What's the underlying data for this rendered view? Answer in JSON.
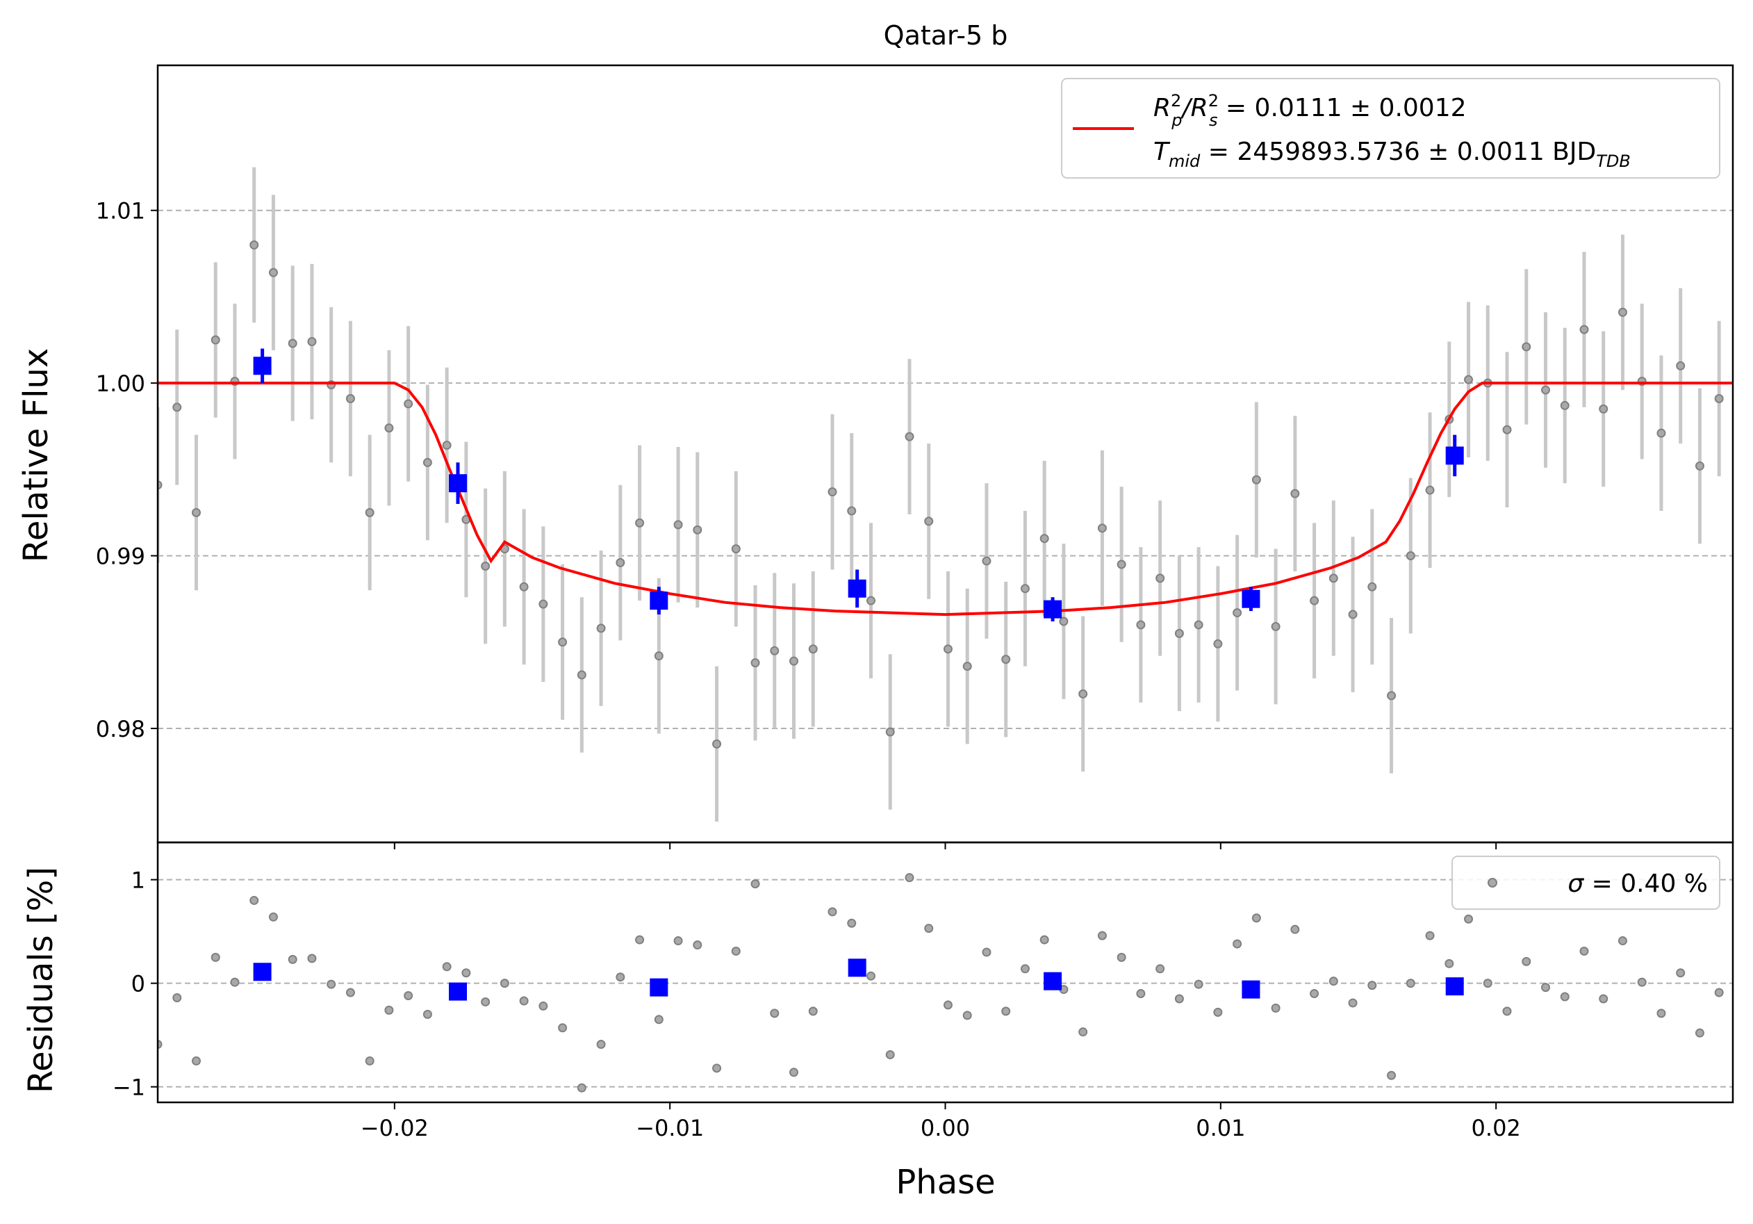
{
  "chart_data": {
    "type": "scatter",
    "title": "Qatar-5 b",
    "xlabel": "Phase",
    "top_panel": {
      "ylabel": "Relative Flux",
      "xlim": [
        -0.0286,
        0.0286
      ],
      "ylim": [
        0.9734,
        1.0184
      ],
      "yticks": [
        0.98,
        0.99,
        1.0,
        1.01
      ],
      "ytick_labels": [
        "0.98",
        "0.99",
        "1.00",
        "1.01"
      ],
      "grid": true,
      "legend": {
        "location": "upper right",
        "line1_main": "R",
        "line1_sup_a": "2",
        "line1_sub_a": "p",
        "line1_mid": "/R",
        "line1_sup_b": "2",
        "line1_sub_b": "s",
        "line1_value": " = 0.0111 ± 0.0012",
        "line2_main": "T",
        "line2_sub": "mid",
        "line2_value": " = 2459893.5736 ± 0.0011 BJD",
        "line2_sub2": "TDB",
        "line_color": "#ff0000"
      },
      "model": {
        "name": "transit model",
        "color": "#ff0000",
        "x": [
          -0.0286,
          -0.02,
          -0.0195,
          -0.019,
          -0.0185,
          -0.018,
          -0.0175,
          -0.017,
          -0.0165,
          -0.016,
          -0.015,
          -0.014,
          -0.012,
          -0.01,
          -0.008,
          -0.006,
          -0.004,
          -0.002,
          0.0,
          0.002,
          0.004,
          0.006,
          0.008,
          0.01,
          0.012,
          0.014,
          0.015,
          0.016,
          0.0165,
          0.017,
          0.0175,
          0.018,
          0.0185,
          0.019,
          0.0195,
          0.02,
          0.0286
        ],
        "y": [
          1.0,
          1.0,
          0.9996,
          0.9986,
          0.997,
          0.995,
          0.9931,
          0.9912,
          0.9897,
          0.9908,
          0.9899,
          0.9893,
          0.9884,
          0.9878,
          0.9873,
          0.987,
          0.9868,
          0.9867,
          0.9866,
          0.9867,
          0.9868,
          0.987,
          0.9873,
          0.9878,
          0.9884,
          0.9893,
          0.9899,
          0.9908,
          0.992,
          0.9936,
          0.9954,
          0.9971,
          0.9985,
          0.9995,
          1.0,
          1.0,
          1.0
        ]
      },
      "binned": {
        "name": "binned",
        "color": "#0000ff",
        "x": [
          -0.0248,
          -0.0177,
          -0.0104,
          -0.0032,
          0.0039,
          0.0111,
          0.0185
        ],
        "y": [
          1.001,
          0.9942,
          0.9874,
          0.9881,
          0.9869,
          0.9875,
          0.9958
        ],
        "yerr": [
          0.001,
          0.0012,
          0.0008,
          0.0011,
          0.0007,
          0.0007,
          0.0012
        ]
      },
      "raw": {
        "name": "unbinned",
        "color": "#808080",
        "yerr": 0.0045,
        "x": [
          -0.0286,
          -0.0279,
          -0.0272,
          -0.0265,
          -0.0258,
          -0.0251,
          -0.0244,
          -0.0237,
          -0.023,
          -0.0223,
          -0.0216,
          -0.0209,
          -0.0202,
          -0.0195,
          -0.0188,
          -0.0181,
          -0.0174,
          -0.0167,
          -0.016,
          -0.0153,
          -0.0146,
          -0.0139,
          -0.0132,
          -0.0125,
          -0.0118,
          -0.0111,
          -0.0104,
          -0.0097,
          -0.009,
          -0.0083,
          -0.0076,
          -0.0069,
          -0.0062,
          -0.0055,
          -0.0048,
          -0.0041,
          -0.0034,
          -0.0027,
          -0.002,
          -0.0013,
          -0.0006,
          0.0001,
          0.0008,
          0.0015,
          0.0022,
          0.0029,
          0.0036,
          0.0043,
          0.005,
          0.0057,
          0.0064,
          0.0071,
          0.0078,
          0.0085,
          0.0092,
          0.0099,
          0.0106,
          0.0113,
          0.012,
          0.0127,
          0.0134,
          0.0141,
          0.0148,
          0.0155,
          0.0162,
          0.0169,
          0.0176,
          0.0183,
          0.019,
          0.0197,
          0.0204,
          0.0211,
          0.0218,
          0.0225,
          0.0232,
          0.0239,
          0.0246,
          0.0253,
          0.026,
          0.0267,
          0.0274,
          0.0281
        ],
        "y": [
          0.9941,
          0.9986,
          0.9925,
          1.0025,
          1.0001,
          1.008,
          1.0064,
          1.0023,
          1.0024,
          0.9999,
          0.9991,
          0.9925,
          0.9974,
          0.9988,
          0.9954,
          0.9964,
          0.9921,
          0.9894,
          0.9904,
          0.9882,
          0.9872,
          0.985,
          0.9831,
          0.9858,
          0.9896,
          0.9919,
          0.9842,
          0.9918,
          0.9915,
          0.9791,
          0.9904,
          0.9838,
          0.9845,
          0.9839,
          0.9846,
          0.9937,
          0.9926,
          0.9874,
          0.9798,
          0.9969,
          0.992,
          0.9846,
          0.9836,
          0.9897,
          0.984,
          0.9881,
          0.991,
          0.9862,
          0.982,
          0.9916,
          0.9895,
          0.986,
          0.9887,
          0.9855,
          0.986,
          0.9849,
          0.9867,
          0.9944,
          0.9859,
          0.9936,
          0.9874,
          0.9887,
          0.9866,
          0.9882,
          0.9819,
          0.99,
          0.9938,
          0.9979,
          1.0002,
          1.0,
          0.9973,
          1.0021,
          0.9996,
          0.9987,
          1.0031,
          0.9985,
          1.0041,
          1.0001,
          0.9971,
          1.001,
          0.9952,
          0.9991
        ]
      }
    },
    "bottom_panel": {
      "ylabel": "Residuals [%]",
      "ylim": [
        -1.15,
        1.36
      ],
      "yticks": [
        -1,
        0,
        1
      ],
      "ytick_labels": [
        "−1",
        "0",
        "1"
      ],
      "grid": true,
      "legend": {
        "location": "upper right",
        "prefix": "σ",
        "text": " = 0.40 %"
      },
      "binned": {
        "name": "binned residuals",
        "x": [
          -0.0248,
          -0.0177,
          -0.0104,
          -0.0032,
          0.0039,
          0.0111,
          0.0185
        ],
        "y": [
          0.11,
          -0.08,
          -0.04,
          0.15,
          0.02,
          -0.06,
          -0.03
        ]
      },
      "raw": {
        "name": "residuals",
        "x": [
          -0.0286,
          -0.0279,
          -0.0272,
          -0.0265,
          -0.0258,
          -0.0251,
          -0.0244,
          -0.0237,
          -0.023,
          -0.0223,
          -0.0216,
          -0.0209,
          -0.0202,
          -0.0195,
          -0.0188,
          -0.0181,
          -0.0174,
          -0.0167,
          -0.016,
          -0.0153,
          -0.0146,
          -0.0139,
          -0.0132,
          -0.0125,
          -0.0118,
          -0.0111,
          -0.0104,
          -0.0097,
          -0.009,
          -0.0083,
          -0.0076,
          -0.0069,
          -0.0062,
          -0.0055,
          -0.0048,
          -0.0041,
          -0.0034,
          -0.0027,
          -0.002,
          -0.0013,
          -0.0006,
          0.0001,
          0.0008,
          0.0015,
          0.0022,
          0.0029,
          0.0036,
          0.0043,
          0.005,
          0.0057,
          0.0064,
          0.0071,
          0.0078,
          0.0085,
          0.0092,
          0.0099,
          0.0106,
          0.0113,
          0.012,
          0.0127,
          0.0134,
          0.0141,
          0.0148,
          0.0155,
          0.0162,
          0.0169,
          0.0176,
          0.0183,
          0.019,
          0.0197,
          0.0204,
          0.0211,
          0.0218,
          0.0225,
          0.0232,
          0.0239,
          0.0246,
          0.0253,
          0.026,
          0.0267,
          0.0274,
          0.0281
        ],
        "y": [
          -0.59,
          -0.14,
          -0.75,
          0.25,
          0.01,
          0.8,
          0.64,
          0.23,
          0.24,
          -0.01,
          -0.09,
          -0.75,
          -0.26,
          -0.12,
          -0.3,
          0.16,
          0.1,
          -0.18,
          0.0,
          -0.17,
          -0.22,
          -0.43,
          -1.01,
          -0.59,
          0.06,
          0.42,
          -0.35,
          0.41,
          0.37,
          -0.82,
          0.31,
          0.96,
          -0.29,
          -0.86,
          -0.27,
          0.69,
          0.58,
          0.07,
          -0.69,
          1.02,
          0.53,
          -0.21,
          -0.31,
          0.3,
          -0.27,
          0.14,
          0.42,
          -0.06,
          -0.47,
          0.46,
          0.25,
          -0.1,
          0.14,
          -0.15,
          -0.01,
          -0.28,
          0.38,
          0.63,
          -0.24,
          0.52,
          -0.1,
          0.02,
          -0.19,
          -0.02,
          -0.89,
          0.0,
          0.46,
          0.19,
          0.62,
          0.0,
          -0.27,
          0.21,
          -0.04,
          -0.13,
          0.31,
          -0.15,
          0.41,
          0.01,
          -0.29,
          0.1,
          -0.48,
          -0.09
        ]
      }
    },
    "xticks": [
      -0.02,
      -0.01,
      0.0,
      0.01,
      0.02
    ],
    "xtick_labels": [
      "−0.02",
      "−0.01",
      "0.00",
      "0.01",
      "0.02"
    ]
  }
}
